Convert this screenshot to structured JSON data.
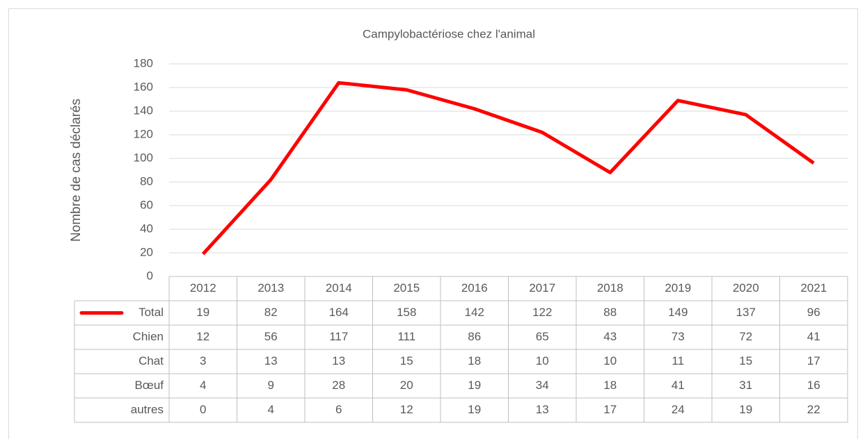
{
  "chart_data": {
    "type": "line",
    "title": "Campylobactériose chez l'animal",
    "y_label": "Nombre de cas déclarés",
    "categories": [
      "2012",
      "2013",
      "2014",
      "2015",
      "2016",
      "2017",
      "2018",
      "2019",
      "2020",
      "2021"
    ],
    "series": [
      {
        "name": "Total",
        "color": "#ff0000",
        "values": [
          19,
          82,
          164,
          158,
          142,
          122,
          88,
          149,
          137,
          96
        ]
      },
      {
        "name": "Chien",
        "values": [
          12,
          56,
          117,
          111,
          86,
          65,
          43,
          73,
          72,
          41
        ]
      },
      {
        "name": "Chat",
        "values": [
          3,
          13,
          13,
          15,
          18,
          10,
          10,
          11,
          15,
          17
        ]
      },
      {
        "name": "Bœuf",
        "values": [
          4,
          9,
          28,
          20,
          19,
          34,
          18,
          41,
          31,
          16
        ]
      },
      {
        "name": "autres",
        "values": [
          0,
          4,
          6,
          12,
          19,
          13,
          17,
          24,
          19,
          22
        ]
      }
    ],
    "ylim": [
      0,
      180
    ],
    "yticks": [
      0,
      20,
      40,
      60,
      80,
      100,
      120,
      140,
      160,
      180
    ],
    "grid": true
  }
}
